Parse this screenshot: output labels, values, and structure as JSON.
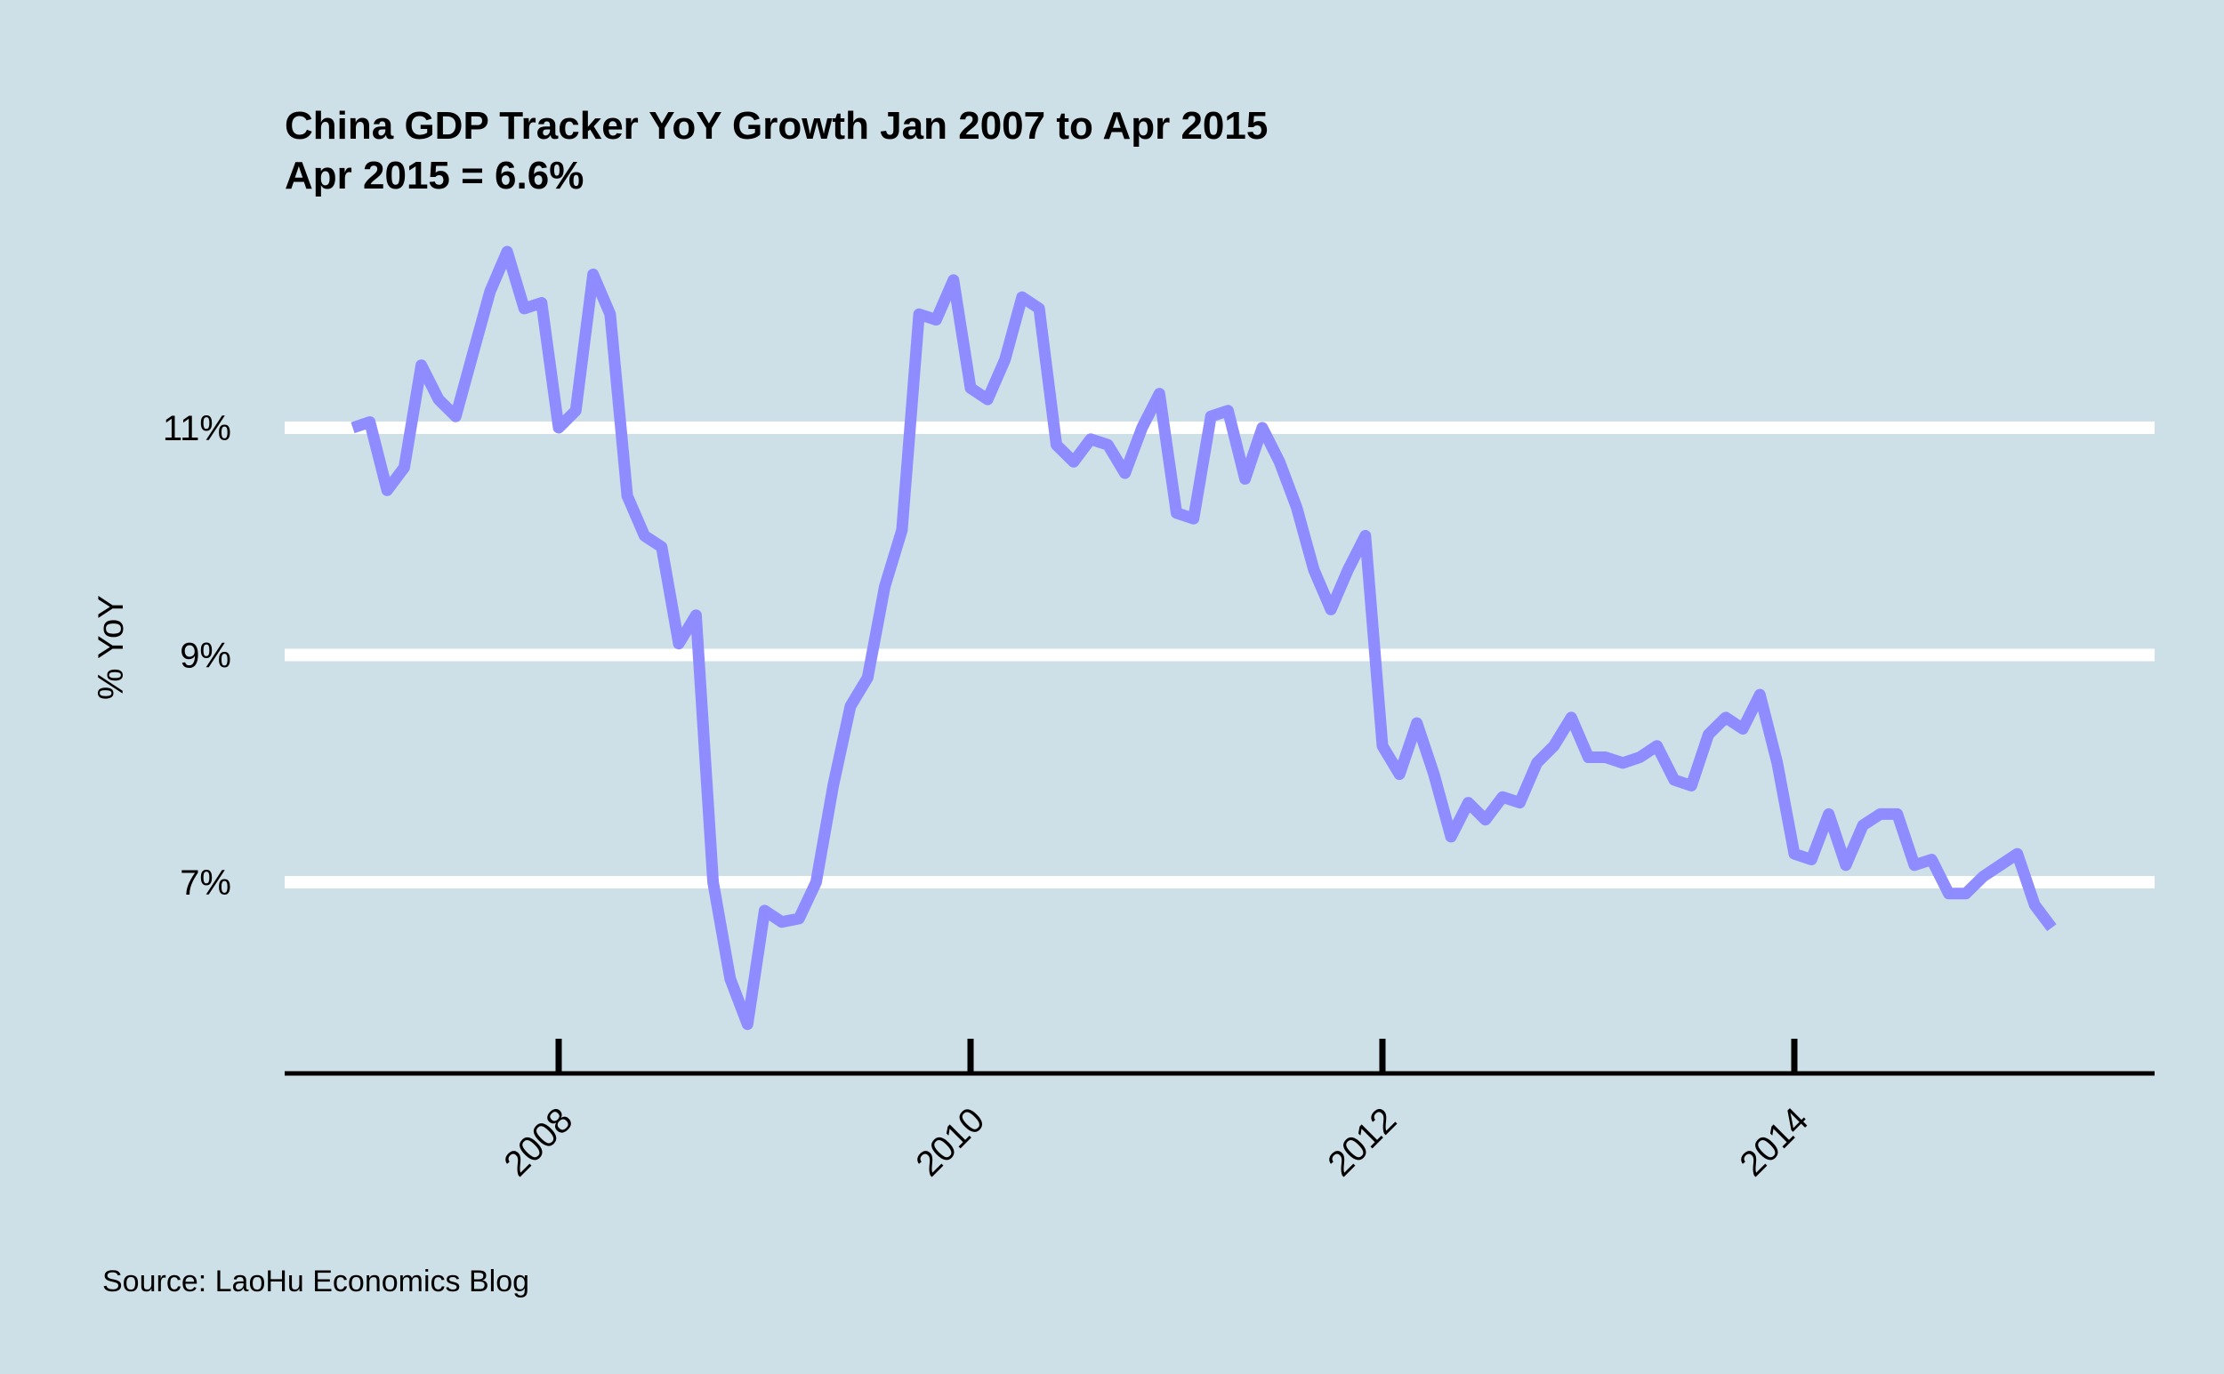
{
  "chart_data": {
    "type": "line",
    "title": "China GDP Tracker YoY Growth Jan 2007 to Apr 2015",
    "subtitle": "Apr 2015 = 6.6%",
    "ylabel": "% YoY",
    "xlabel": "",
    "source": "Source: LaoHu Economics Blog",
    "ylim": [
      5.2,
      12.8
    ],
    "xlim": [
      2006.67,
      2015.75
    ],
    "grid": true,
    "y_ticks": [
      {
        "value": 7,
        "label": "7%"
      },
      {
        "value": 9,
        "label": "9%"
      },
      {
        "value": 11,
        "label": "11%"
      }
    ],
    "x_ticks": [
      {
        "value": 2008,
        "label": "2008"
      },
      {
        "value": 2010,
        "label": "2010"
      },
      {
        "value": 2012,
        "label": "2012"
      },
      {
        "value": 2014,
        "label": "2014"
      }
    ],
    "colors": {
      "background": "#cddfe7",
      "line": "#8f8cff",
      "grid": "#ffffff",
      "axis": "#000000"
    },
    "series": [
      {
        "x": [
          2007.0,
          2007.083,
          2007.167,
          2007.25,
          2007.333,
          2007.417,
          2007.5,
          2007.583,
          2007.667,
          2007.75,
          2007.833,
          2007.917,
          2008.0,
          2008.083,
          2008.167,
          2008.25,
          2008.333,
          2008.417,
          2008.5,
          2008.583,
          2008.667,
          2008.75,
          2008.833,
          2008.917,
          2009.0,
          2009.083,
          2009.167,
          2009.25,
          2009.333,
          2009.417,
          2009.5,
          2009.583,
          2009.667,
          2009.75,
          2009.833,
          2009.917,
          2010.0,
          2010.083,
          2010.167,
          2010.25,
          2010.333,
          2010.417,
          2010.5,
          2010.583,
          2010.667,
          2010.75,
          2010.833,
          2010.917,
          2011.0,
          2011.083,
          2011.167,
          2011.25,
          2011.333,
          2011.417,
          2011.5,
          2011.583,
          2011.667,
          2011.75,
          2011.833,
          2011.917,
          2012.0,
          2012.083,
          2012.167,
          2012.25,
          2012.333,
          2012.417,
          2012.5,
          2012.583,
          2012.667,
          2012.75,
          2012.833,
          2012.917,
          2013.0,
          2013.083,
          2013.167,
          2013.25,
          2013.333,
          2013.417,
          2013.5,
          2013.583,
          2013.667,
          2013.75,
          2013.833,
          2013.917,
          2014.0,
          2014.083,
          2014.167,
          2014.25,
          2014.333,
          2014.417,
          2014.5,
          2014.583,
          2014.667,
          2014.75,
          2014.833,
          2014.917,
          2015.0,
          2015.083,
          2015.167,
          2015.25
        ],
        "y": [
          11.0,
          11.05,
          10.45,
          10.65,
          11.55,
          11.25,
          11.1,
          11.65,
          12.2,
          12.55,
          12.05,
          12.1,
          11.0,
          11.15,
          12.35,
          12.0,
          10.4,
          10.05,
          9.95,
          9.1,
          9.35,
          7.0,
          6.15,
          5.75,
          6.75,
          6.65,
          6.68,
          7.0,
          7.85,
          8.55,
          8.8,
          9.6,
          10.1,
          12.0,
          11.95,
          12.3,
          11.35,
          11.25,
          11.6,
          12.15,
          12.05,
          10.85,
          10.7,
          10.9,
          10.85,
          10.6,
          11.0,
          11.3,
          10.25,
          10.2,
          11.1,
          11.15,
          10.55,
          11.0,
          10.7,
          10.3,
          9.75,
          9.4,
          9.75,
          10.05,
          8.2,
          7.95,
          8.4,
          7.95,
          7.4,
          7.7,
          7.55,
          7.75,
          7.7,
          8.05,
          8.2,
          8.45,
          8.1,
          8.1,
          8.05,
          8.1,
          8.2,
          7.9,
          7.85,
          8.3,
          8.45,
          8.35,
          8.65,
          8.05,
          7.25,
          7.2,
          7.6,
          7.15,
          7.5,
          7.6,
          7.6,
          7.15,
          7.2,
          6.9,
          6.9,
          7.05,
          7.15,
          7.25,
          6.8,
          6.6
        ]
      }
    ]
  }
}
